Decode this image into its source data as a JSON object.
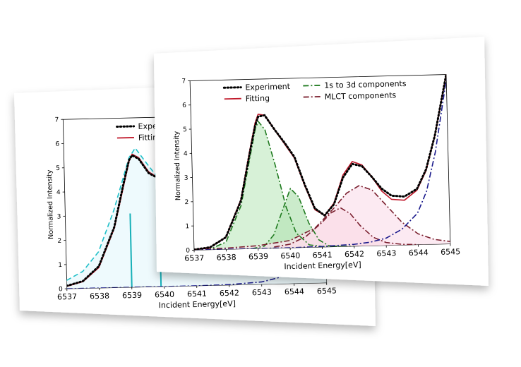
{
  "chart_data": [
    {
      "type": "line",
      "title": "",
      "xlabel": "Incident Energy[eV]",
      "ylabel": "Normalized Intensity",
      "xlim": [
        6537,
        6545
      ],
      "ylim": [
        0,
        7
      ],
      "x_ticks": [
        "6537",
        "6538",
        "6539",
        "6540",
        "6541",
        "6542",
        "6543",
        "6544",
        "6545"
      ],
      "y_ticks": [
        "0",
        "1",
        "2",
        "3",
        "4",
        "5",
        "6",
        "7"
      ],
      "legend": {
        "placement": "top-center",
        "entries": [
          {
            "label": "Experiment",
            "color": "#000000",
            "style": "dotted"
          },
          {
            "label": "Fitting",
            "color": "#c0182a",
            "style": "solid"
          }
        ]
      },
      "series": [
        {
          "name": "Experiment",
          "style": "dotted",
          "color": "#000000",
          "x": [
            6537,
            6537.5,
            6538,
            6538.5,
            6538.8,
            6539,
            6539.1,
            6539.3,
            6539.6,
            6540,
            6540.2,
            6540.5,
            6540.9,
            6541.3,
            6541.7,
            6542,
            6542.5,
            6543,
            6543.5,
            6544,
            6544.5,
            6545
          ],
          "y": [
            0.12,
            0.3,
            0.9,
            2.5,
            4.2,
            5.25,
            5.45,
            5.3,
            4.7,
            4.4,
            4.45,
            4.2,
            3.1,
            1.9,
            1.1,
            0.7,
            0.55,
            0.5,
            0.6,
            0.9,
            1.5,
            2.4
          ]
        },
        {
          "name": "Fitting",
          "style": "solid",
          "color": "#c0182a",
          "x": [
            6537,
            6537.5,
            6538,
            6538.5,
            6538.8,
            6539,
            6539.1,
            6539.3,
            6539.6,
            6540,
            6540.2,
            6540.5,
            6540.9,
            6541.3,
            6541.7,
            6542,
            6542.5,
            6543,
            6543.5,
            6544,
            6544.5,
            6545
          ],
          "y": [
            0.1,
            0.28,
            0.85,
            2.45,
            4.1,
            5.2,
            5.5,
            5.35,
            4.75,
            4.4,
            4.5,
            4.25,
            3.15,
            1.95,
            1.15,
            0.75,
            0.55,
            0.5,
            0.6,
            0.9,
            1.5,
            2.4
          ]
        },
        {
          "name": "",
          "style": "dashed",
          "color": "#1fbfc8",
          "fill": "#e8f8fc",
          "x": [
            6537,
            6537.5,
            6538,
            6538.5,
            6539,
            6539.2,
            6539.6,
            6540,
            6540.3,
            6540.6,
            6541,
            6541.5,
            6542,
            6542.5,
            6543,
            6543.5,
            6544,
            6544.5,
            6545
          ],
          "y": [
            0.35,
            0.7,
            1.5,
            3.2,
            5.35,
            5.75,
            5.0,
            4.3,
            4.55,
            4.5,
            3.4,
            2.1,
            1.3,
            0.95,
            0.75,
            0.62,
            0.5,
            0.42,
            0.35
          ]
        },
        {
          "name": "",
          "style": "dash-dot",
          "color": "#1a1a8c",
          "x": [
            6537,
            6538,
            6539,
            6540,
            6541,
            6542,
            6543,
            6543.5,
            6544,
            6544.5,
            6545
          ],
          "y": [
            0,
            0,
            0,
            0,
            0,
            0.02,
            0.1,
            0.25,
            0.55,
            1.2,
            2.4
          ]
        }
      ],
      "sticks": {
        "color": "#17b0b8",
        "x": [
          6539,
          6539.9
        ],
        "y": [
          3.05,
          1.8
        ]
      }
    },
    {
      "type": "area",
      "title": "",
      "xlabel": "Incident Energy[eV]",
      "ylabel": "Normalized Intensity",
      "xlim": [
        6537,
        6545
      ],
      "ylim": [
        0,
        7
      ],
      "x_ticks": [
        "6537",
        "6538",
        "6539",
        "6540",
        "6541",
        "6542",
        "6543",
        "6544",
        "6545"
      ],
      "y_ticks": [
        "0",
        "1",
        "2",
        "3",
        "4",
        "5",
        "6",
        "7"
      ],
      "legend": {
        "placement": "top-center",
        "entries": [
          {
            "label": "Experiment",
            "color": "#000000",
            "style": "dotted"
          },
          {
            "label": "Fitting",
            "color": "#c0182a",
            "style": "solid"
          },
          {
            "label": "1s to 3d components",
            "color": "#1f7a1f",
            "style": "dash-dot"
          },
          {
            "label": "MLCT components",
            "color": "#7a1f2e",
            "style": "dash-dot"
          }
        ]
      },
      "series": [
        {
          "name": "Experiment",
          "style": "dotted",
          "color": "#000000",
          "x": [
            6537,
            6537.5,
            6538,
            6538.5,
            6538.8,
            6539,
            6539.1,
            6539.3,
            6539.6,
            6539.9,
            6540.2,
            6540.5,
            6540.8,
            6541.1,
            6541.4,
            6541.7,
            6542,
            6542.3,
            6542.6,
            6542.9,
            6543.2,
            6543.6,
            6544,
            6544.3,
            6544.6,
            6545
          ],
          "y": [
            0.02,
            0.1,
            0.5,
            2.0,
            3.9,
            5.1,
            5.45,
            5.5,
            4.9,
            4.35,
            3.75,
            2.6,
            1.6,
            1.3,
            1.75,
            2.85,
            3.4,
            3.3,
            2.85,
            2.35,
            2.05,
            2.0,
            2.3,
            3.1,
            4.5,
            7.0
          ]
        },
        {
          "name": "Fitting",
          "style": "solid",
          "color": "#c0182a",
          "x": [
            6537,
            6537.5,
            6538,
            6538.5,
            6538.8,
            6539,
            6539.1,
            6539.3,
            6539.6,
            6539.9,
            6540.2,
            6540.5,
            6540.8,
            6541.1,
            6541.4,
            6541.7,
            6542,
            6542.3,
            6542.6,
            6542.9,
            6543.2,
            6543.6,
            6544,
            6544.3,
            6544.6,
            6545
          ],
          "y": [
            0.02,
            0.1,
            0.5,
            2.05,
            4.0,
            5.2,
            5.55,
            5.5,
            4.9,
            4.3,
            3.7,
            2.55,
            1.55,
            1.3,
            1.8,
            2.95,
            3.5,
            3.35,
            2.85,
            2.25,
            1.9,
            1.85,
            2.25,
            3.05,
            4.5,
            7.0
          ]
        },
        {
          "name": "1s to 3d components",
          "style": "dash-dot",
          "color": "#1f7a1f",
          "fill": "#c9ecc9",
          "x": [
            6537,
            6537.5,
            6538,
            6538.5,
            6538.8,
            6539,
            6539.1,
            6539.3,
            6539.6,
            6539.9,
            6540.2,
            6540.6,
            6541,
            6541.5,
            6542
          ],
          "y": [
            0,
            0.03,
            0.3,
            1.8,
            3.7,
            4.95,
            5.25,
            4.9,
            3.4,
            1.7,
            0.6,
            0.1,
            0.02,
            0,
            0
          ]
        },
        {
          "name": "1s to 3d components",
          "style": "dash-dot",
          "color": "#1f7a1f",
          "fill": "#b9e4b9",
          "x": [
            6538.8,
            6539.2,
            6539.5,
            6539.8,
            6540.05,
            6540.3,
            6540.6,
            6540.9,
            6541.2,
            6541.6
          ],
          "y": [
            0,
            0.1,
            0.55,
            1.6,
            2.45,
            2.1,
            1.0,
            0.3,
            0.05,
            0
          ]
        },
        {
          "name": "MLCT components",
          "style": "dash-dot",
          "color": "#7a1f2e",
          "fill": "#f7c9d4",
          "x": [
            6539.5,
            6540,
            6540.5,
            6541,
            6541.3,
            6541.6,
            6541.9,
            6542.2,
            6542.6,
            6543,
            6543.5,
            6544
          ],
          "y": [
            0.05,
            0.15,
            0.45,
            1.0,
            1.4,
            1.6,
            1.35,
            0.85,
            0.35,
            0.12,
            0.03,
            0
          ]
        },
        {
          "name": "MLCT components",
          "style": "dash-dot",
          "color": "#7a1f2e",
          "fill": "#fbe3ee",
          "x": [
            6537,
            6538,
            6539,
            6540,
            6540.8,
            6541.4,
            6541.8,
            6542.2,
            6542.6,
            6543,
            6543.5,
            6544,
            6544.5,
            6545
          ],
          "y": [
            0.02,
            0.05,
            0.12,
            0.3,
            0.8,
            1.6,
            2.2,
            2.5,
            2.3,
            1.7,
            0.95,
            0.45,
            0.2,
            0.1
          ]
        },
        {
          "name": "",
          "style": "dash-dot",
          "color": "#1a1a8c",
          "x": [
            6537,
            6538,
            6539,
            6540,
            6541,
            6542,
            6542.5,
            6543,
            6543.5,
            6544,
            6544.3,
            6544.6,
            6545
          ],
          "y": [
            0,
            0,
            0,
            0,
            0.02,
            0.08,
            0.15,
            0.3,
            0.65,
            1.3,
            2.2,
            3.8,
            6.8
          ]
        }
      ]
    }
  ]
}
